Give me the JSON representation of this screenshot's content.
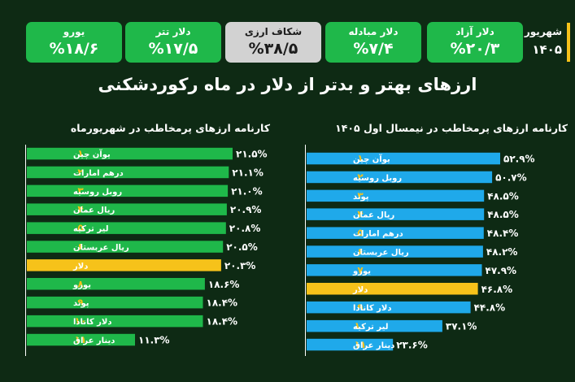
{
  "header": {
    "month_label": "شهریور",
    "year": "۱۴۰۵",
    "cards": [
      {
        "label": "دلار آزاد",
        "value": "%۲۰/۳",
        "style": "green"
      },
      {
        "label": "دلار مبادله",
        "value": "%۷/۴",
        "style": "green"
      },
      {
        "label": "شکاف ارزی",
        "value": "%۳۸/۵",
        "style": "gray"
      },
      {
        "label": "دلار تتر",
        "value": "%۱۷/۵",
        "style": "green"
      },
      {
        "label": "یورو",
        "value": "%۱۸/۶",
        "style": "green"
      }
    ]
  },
  "main_title": "ارزهای بهتر و بدتر از دلار در ماه رکوردشکنی",
  "colors": {
    "background": "#0e2a14",
    "green_bar": "#1fb84a",
    "blue_bar": "#1fa9ea",
    "highlight": "#f6c21a",
    "gray_card": "#d2d2d2"
  },
  "chart_data": [
    {
      "type": "bar",
      "orientation": "horizontal",
      "title": "کارنامه ارزهای پرمخاطب در نیمسال اول ۱۴۰۵",
      "ranks": [
        "۱",
        "۲",
        "۳",
        "۴",
        "۵",
        "۶",
        "۷",
        "۸",
        "۹",
        "۱۰",
        "۱۱"
      ],
      "categories": [
        "یوآن چین",
        "روبل روسیه",
        "پوند",
        "ریال عمان",
        "درهم امارات",
        "ریال عربستان",
        "یورو",
        "دلار",
        "دلار کانادا",
        "لیر ترکیه",
        "دینار عراق"
      ],
      "values": [
        52.9,
        50.7,
        48.5,
        48.5,
        48.4,
        48.2,
        47.9,
        46.8,
        44.8,
        37.1,
        23.6
      ],
      "value_labels": [
        "۵۲.۹%",
        "۵۰.۷%",
        "۴۸.۵%",
        "۴۸.۵%",
        "۴۸.۴%",
        "۴۸.۲%",
        "۴۷.۹%",
        "۴۶.۸%",
        "۴۴.۸%",
        "۳۷.۱%",
        "۲۳.۶%"
      ],
      "highlight": "دلار",
      "bar_color": "#1fa9ea"
    },
    {
      "type": "bar",
      "orientation": "horizontal",
      "title": "کارنامه ارزهای پرمخاطب در شهریورماه",
      "ranks": [
        "۱",
        "۲",
        "۳",
        "۴",
        "۵",
        "۶",
        "۷",
        "۸",
        "۹",
        "۱۰",
        "۱۱"
      ],
      "categories": [
        "یوآن چین",
        "درهم امارات",
        "روبل روسیه",
        "ریال عمان",
        "لیر ترکیه",
        "ریال عربستان",
        "دلار",
        "یورو",
        "پوند",
        "دلار کانادا",
        "دینار عراق"
      ],
      "values": [
        21.5,
        21.1,
        21.0,
        20.9,
        20.8,
        20.5,
        20.3,
        18.6,
        18.4,
        18.4,
        11.3
      ],
      "value_labels": [
        "۲۱.۵%",
        "۲۱.۱%",
        "۲۱.۰%",
        "۲۰.۹%",
        "۲۰.۸%",
        "۲۰.۵%",
        "۲۰.۳%",
        "۱۸.۶%",
        "۱۸.۴%",
        "۱۸.۴%",
        "۱۱.۳%"
      ],
      "highlight": "دلار",
      "bar_color": "#1fb84a"
    }
  ]
}
